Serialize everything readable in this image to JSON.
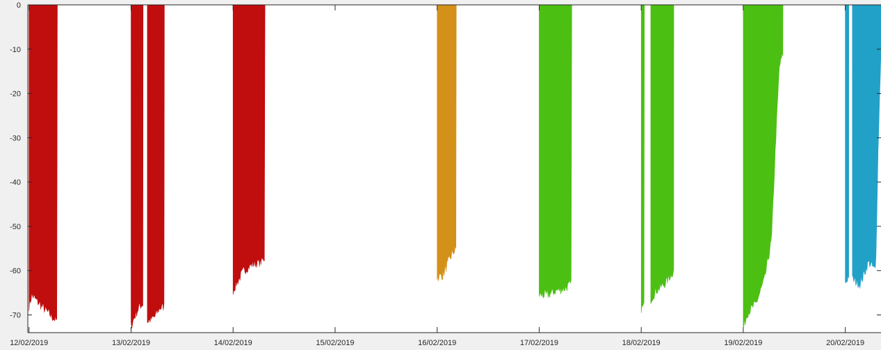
{
  "chart_data": {
    "type": "area",
    "title": "",
    "xlabel": "",
    "ylabel": "",
    "x_axis_type": "date",
    "x_ticks": [
      "12/02/2019",
      "13/02/2019",
      "14/02/2019",
      "15/02/2019",
      "16/02/2019",
      "17/02/2019",
      "18/02/2019",
      "19/02/2019",
      "20/02/2019"
    ],
    "xlim": [
      "2019-02-11T23:43",
      "2019-02-20T08:24"
    ],
    "y_ticks": [
      0,
      -10,
      -20,
      -30,
      -40,
      -50,
      -60,
      -70
    ],
    "ylim": [
      -74,
      0
    ],
    "grid": false,
    "legend": "none",
    "series": [
      {
        "color": "#c00d0d",
        "segments": [
          {
            "start": "2019-02-12T00:00",
            "end": "2019-02-12T06:40",
            "profile": [
              {
                "t": "2019-02-12T00:00",
                "min": -68
              },
              {
                "t": "2019-02-12T00:40",
                "min": -65.5
              },
              {
                "t": "2019-02-12T02:00",
                "min": -67
              },
              {
                "t": "2019-02-12T03:30",
                "min": -68.5
              },
              {
                "t": "2019-02-12T05:00",
                "min": -70
              },
              {
                "t": "2019-02-12T06:40",
                "min": -71.5
              }
            ]
          },
          {
            "start": "2019-02-13T00:00",
            "end": "2019-02-13T02:50",
            "profile": [
              {
                "t": "2019-02-13T00:00",
                "min": -72.5
              },
              {
                "t": "2019-02-13T01:00",
                "min": -70
              },
              {
                "t": "2019-02-13T02:00",
                "min": -68
              },
              {
                "t": "2019-02-13T02:50",
                "min": -67.5
              }
            ]
          },
          {
            "start": "2019-02-13T03:50",
            "end": "2019-02-13T07:50",
            "profile": [
              {
                "t": "2019-02-13T03:50",
                "min": -71.5
              },
              {
                "t": "2019-02-13T05:30",
                "min": -70.5
              },
              {
                "t": "2019-02-13T06:40",
                "min": -68.5
              },
              {
                "t": "2019-02-13T07:50",
                "min": -68
              }
            ]
          },
          {
            "start": "2019-02-14T00:00",
            "end": "2019-02-14T07:30",
            "profile": [
              {
                "t": "2019-02-14T00:00",
                "min": -64.5
              },
              {
                "t": "2019-02-14T01:00",
                "min": -62.5
              },
              {
                "t": "2019-02-14T02:30",
                "min": -60
              },
              {
                "t": "2019-02-14T04:30",
                "min": -58.5
              },
              {
                "t": "2019-02-14T06:30",
                "min": -58
              },
              {
                "t": "2019-02-14T07:30",
                "min": -57
              }
            ]
          }
        ]
      },
      {
        "color": "#d4911a",
        "segments": [
          {
            "start": "2019-02-16T00:00",
            "end": "2019-02-16T04:30",
            "profile": [
              {
                "t": "2019-02-16T00:00",
                "min": -61.5
              },
              {
                "t": "2019-02-16T01:20",
                "min": -61
              },
              {
                "t": "2019-02-16T02:40",
                "min": -58
              },
              {
                "t": "2019-02-16T03:40",
                "min": -56
              },
              {
                "t": "2019-02-16T04:30",
                "min": -55
              }
            ]
          }
        ]
      },
      {
        "color": "#4cbf13",
        "segments": [
          {
            "start": "2019-02-17T00:00",
            "end": "2019-02-17T07:40",
            "profile": [
              {
                "t": "2019-02-17T00:00",
                "min": -65.5
              },
              {
                "t": "2019-02-17T02:00",
                "min": -65.5
              },
              {
                "t": "2019-02-17T04:00",
                "min": -64.5
              },
              {
                "t": "2019-02-17T06:00",
                "min": -64
              },
              {
                "t": "2019-02-17T07:40",
                "min": -63
              }
            ]
          },
          {
            "start": "2019-02-18T00:00",
            "end": "2019-02-18T00:45",
            "profile": [
              {
                "t": "2019-02-18T00:00",
                "min": -68.5
              },
              {
                "t": "2019-02-18T00:45",
                "min": -68
              }
            ]
          },
          {
            "start": "2019-02-18T02:15",
            "end": "2019-02-18T07:40",
            "profile": [
              {
                "t": "2019-02-18T02:15",
                "min": -66.5
              },
              {
                "t": "2019-02-18T03:30",
                "min": -64.5
              },
              {
                "t": "2019-02-18T05:30",
                "min": -63
              },
              {
                "t": "2019-02-18T07:40",
                "min": -60
              }
            ]
          },
          {
            "start": "2019-02-19T00:00",
            "end": "2019-02-19T09:20",
            "profile": [
              {
                "t": "2019-02-19T00:00",
                "min": -73
              },
              {
                "t": "2019-02-19T01:00",
                "min": -69.5
              },
              {
                "t": "2019-02-19T03:00",
                "min": -67.5
              },
              {
                "t": "2019-02-19T05:00",
                "min": -62
              },
              {
                "t": "2019-02-19T06:40",
                "min": -53
              },
              {
                "t": "2019-02-19T07:40",
                "min": -30
              },
              {
                "t": "2019-02-19T08:30",
                "min": -14
              },
              {
                "t": "2019-02-19T09:20",
                "min": -11
              }
            ]
          }
        ]
      },
      {
        "color": "#21a0c8",
        "segments": [
          {
            "start": "2019-02-20T00:00",
            "end": "2019-02-20T00:50",
            "profile": [
              {
                "t": "2019-02-20T00:00",
                "min": -63
              },
              {
                "t": "2019-02-20T00:50",
                "min": -61
              }
            ]
          },
          {
            "start": "2019-02-20T01:40",
            "end": "2019-02-20T08:24",
            "profile": [
              {
                "t": "2019-02-20T01:40",
                "min": -62
              },
              {
                "t": "2019-02-20T03:30",
                "min": -63
              },
              {
                "t": "2019-02-20T05:30",
                "min": -58
              },
              {
                "t": "2019-02-20T07:10",
                "min": -60
              },
              {
                "t": "2019-02-20T07:40",
                "min": -35
              },
              {
                "t": "2019-02-20T08:24",
                "min": -10
              }
            ]
          }
        ]
      }
    ]
  }
}
